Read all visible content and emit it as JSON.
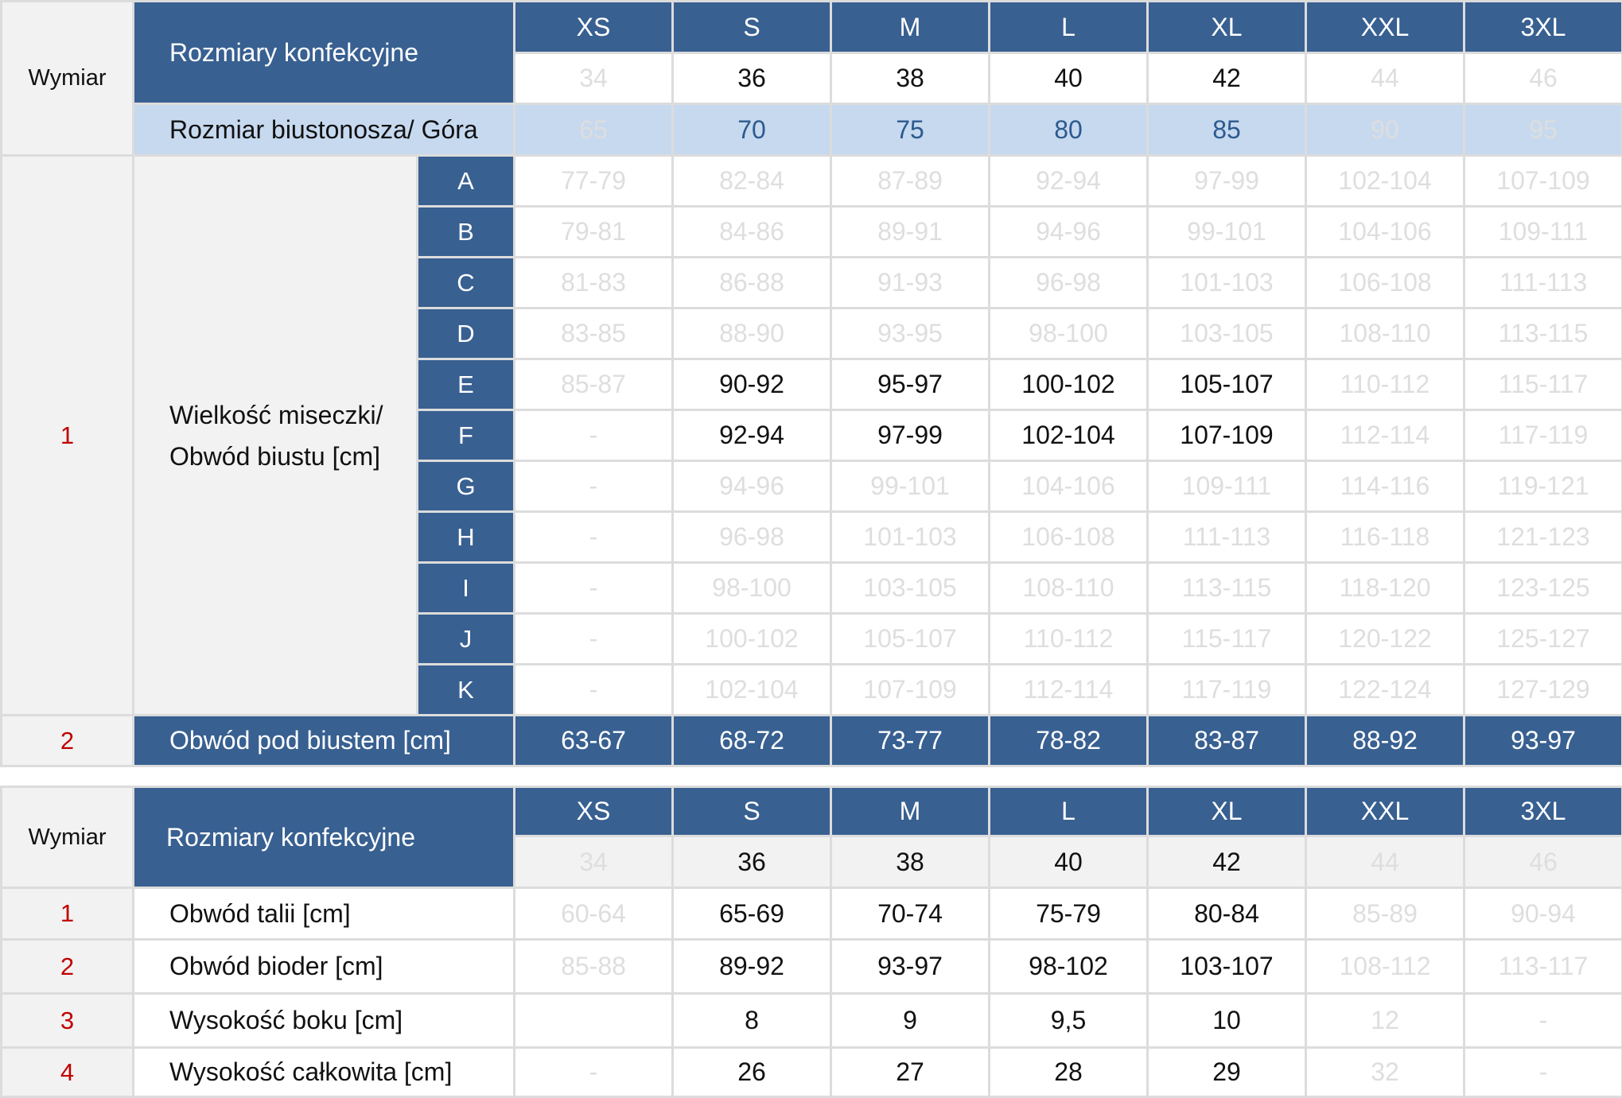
{
  "sizes": [
    "XS",
    "S",
    "M",
    "L",
    "XL",
    "XXL",
    "3XL"
  ],
  "top_table": {
    "dimension_label": "Wymiar",
    "clothing_sizes_label": "Rozmiary konfekcyjne",
    "clothing_numbers": [
      {
        "value": "34",
        "dim": true
      },
      {
        "value": "36"
      },
      {
        "value": "38"
      },
      {
        "value": "40"
      },
      {
        "value": "42"
      },
      {
        "value": "44",
        "dim": true
      },
      {
        "value": "46",
        "dim": true
      }
    ],
    "bra_label": "Rozmiar biustonosza/ Góra",
    "bra_sizes": [
      {
        "value": "65",
        "dim": true
      },
      {
        "value": "70"
      },
      {
        "value": "75"
      },
      {
        "value": "80"
      },
      {
        "value": "85"
      },
      {
        "value": "90",
        "dim": true
      },
      {
        "value": "95",
        "dim": true
      }
    ],
    "cup_row_number": "1",
    "cup_label": "Wielkość miseczki/ Obwód biustu [cm]",
    "cups": [
      {
        "letter": "A",
        "values": [
          {
            "value": "77-79",
            "dim": true
          },
          {
            "value": "82-84",
            "dim": true
          },
          {
            "value": "87-89",
            "dim": true
          },
          {
            "value": "92-94",
            "dim": true
          },
          {
            "value": "97-99",
            "dim": true
          },
          {
            "value": "102-104",
            "dim": true
          },
          {
            "value": "107-109",
            "dim": true
          }
        ]
      },
      {
        "letter": "B",
        "values": [
          {
            "value": "79-81",
            "dim": true
          },
          {
            "value": "84-86",
            "dim": true
          },
          {
            "value": "89-91",
            "dim": true
          },
          {
            "value": "94-96",
            "dim": true
          },
          {
            "value": "99-101",
            "dim": true
          },
          {
            "value": "104-106",
            "dim": true
          },
          {
            "value": "109-111",
            "dim": true
          }
        ]
      },
      {
        "letter": "C",
        "values": [
          {
            "value": "81-83",
            "dim": true
          },
          {
            "value": "86-88",
            "dim": true
          },
          {
            "value": "91-93",
            "dim": true
          },
          {
            "value": "96-98",
            "dim": true
          },
          {
            "value": "101-103",
            "dim": true
          },
          {
            "value": "106-108",
            "dim": true
          },
          {
            "value": "111-113",
            "dim": true
          }
        ]
      },
      {
        "letter": "D",
        "values": [
          {
            "value": "83-85",
            "dim": true
          },
          {
            "value": "88-90",
            "dim": true
          },
          {
            "value": "93-95",
            "dim": true
          },
          {
            "value": "98-100",
            "dim": true
          },
          {
            "value": "103-105",
            "dim": true
          },
          {
            "value": "108-110",
            "dim": true
          },
          {
            "value": "113-115",
            "dim": true
          }
        ]
      },
      {
        "letter": "E",
        "values": [
          {
            "value": "85-87",
            "dim": true
          },
          {
            "value": "90-92"
          },
          {
            "value": "95-97"
          },
          {
            "value": "100-102"
          },
          {
            "value": "105-107"
          },
          {
            "value": "110-112",
            "dim": true
          },
          {
            "value": "115-117",
            "dim": true
          }
        ]
      },
      {
        "letter": "F",
        "values": [
          {
            "value": "-",
            "dim": true
          },
          {
            "value": "92-94"
          },
          {
            "value": "97-99"
          },
          {
            "value": "102-104"
          },
          {
            "value": "107-109"
          },
          {
            "value": "112-114",
            "dim": true
          },
          {
            "value": "117-119",
            "dim": true
          }
        ]
      },
      {
        "letter": "G",
        "values": [
          {
            "value": "-",
            "dim": true
          },
          {
            "value": "94-96",
            "dim": true
          },
          {
            "value": "99-101",
            "dim": true
          },
          {
            "value": "104-106",
            "dim": true
          },
          {
            "value": "109-111",
            "dim": true
          },
          {
            "value": "114-116",
            "dim": true
          },
          {
            "value": "119-121",
            "dim": true
          }
        ]
      },
      {
        "letter": "H",
        "values": [
          {
            "value": "-",
            "dim": true
          },
          {
            "value": "96-98",
            "dim": true
          },
          {
            "value": "101-103",
            "dim": true
          },
          {
            "value": "106-108",
            "dim": true
          },
          {
            "value": "111-113",
            "dim": true
          },
          {
            "value": "116-118",
            "dim": true
          },
          {
            "value": "121-123",
            "dim": true
          }
        ]
      },
      {
        "letter": "I",
        "values": [
          {
            "value": "-",
            "dim": true
          },
          {
            "value": "98-100",
            "dim": true
          },
          {
            "value": "103-105",
            "dim": true
          },
          {
            "value": "108-110",
            "dim": true
          },
          {
            "value": "113-115",
            "dim": true
          },
          {
            "value": "118-120",
            "dim": true
          },
          {
            "value": "123-125",
            "dim": true
          }
        ]
      },
      {
        "letter": "J",
        "values": [
          {
            "value": "-",
            "dim": true
          },
          {
            "value": "100-102",
            "dim": true
          },
          {
            "value": "105-107",
            "dim": true
          },
          {
            "value": "110-112",
            "dim": true
          },
          {
            "value": "115-117",
            "dim": true
          },
          {
            "value": "120-122",
            "dim": true
          },
          {
            "value": "125-127",
            "dim": true
          }
        ]
      },
      {
        "letter": "K",
        "values": [
          {
            "value": "-",
            "dim": true
          },
          {
            "value": "102-104",
            "dim": true
          },
          {
            "value": "107-109",
            "dim": true
          },
          {
            "value": "112-114",
            "dim": true
          },
          {
            "value": "117-119",
            "dim": true
          },
          {
            "value": "122-124",
            "dim": true
          },
          {
            "value": "127-129",
            "dim": true
          }
        ]
      }
    ],
    "underbust": {
      "number": "2",
      "label": "Obwód pod biustem [cm]",
      "values": [
        "63-67",
        "68-72",
        "73-77",
        "78-82",
        "83-87",
        "88-92",
        "93-97"
      ]
    }
  },
  "bottom_table": {
    "dimension_label": "Wymiar",
    "clothing_sizes_label": "Rozmiary konfekcyjne",
    "clothing_numbers": [
      {
        "value": "34",
        "dim": true
      },
      {
        "value": "36"
      },
      {
        "value": "38"
      },
      {
        "value": "40"
      },
      {
        "value": "42"
      },
      {
        "value": "44",
        "dim": true
      },
      {
        "value": "46",
        "dim": true
      }
    ],
    "rows": [
      {
        "number": "1",
        "label": "Obwód talii [cm]",
        "values": [
          {
            "value": "60-64",
            "dim": true
          },
          {
            "value": "65-69"
          },
          {
            "value": "70-74"
          },
          {
            "value": "75-79"
          },
          {
            "value": "80-84"
          },
          {
            "value": "85-89",
            "dim": true
          },
          {
            "value": "90-94",
            "dim": true
          }
        ]
      },
      {
        "number": "2",
        "label": "Obwód bioder [cm]",
        "values": [
          {
            "value": "85-88",
            "dim": true
          },
          {
            "value": "89-92"
          },
          {
            "value": "93-97"
          },
          {
            "value": "98-102"
          },
          {
            "value": "103-107"
          },
          {
            "value": "108-112",
            "dim": true
          },
          {
            "value": "113-117",
            "dim": true
          }
        ]
      },
      {
        "number": "3",
        "label": "Wysokość boku [cm]",
        "values": [
          {
            "value": ""
          },
          {
            "value": "8"
          },
          {
            "value": "9"
          },
          {
            "value": "9,5"
          },
          {
            "value": "10"
          },
          {
            "value": "12",
            "dim": true
          },
          {
            "value": "-",
            "dim": true
          }
        ]
      },
      {
        "number": "4",
        "label": "Wysokość całkowita [cm]",
        "values": [
          {
            "value": "-",
            "dim": true
          },
          {
            "value": "26"
          },
          {
            "value": "27"
          },
          {
            "value": "28"
          },
          {
            "value": "29"
          },
          {
            "value": "32",
            "dim": true
          },
          {
            "value": "-",
            "dim": true
          }
        ]
      }
    ]
  },
  "colors": {
    "header_blue": "#386091",
    "bra_row": "#c6d9ef",
    "row_number_red": "#c00000",
    "dim_text": "#dedede"
  }
}
